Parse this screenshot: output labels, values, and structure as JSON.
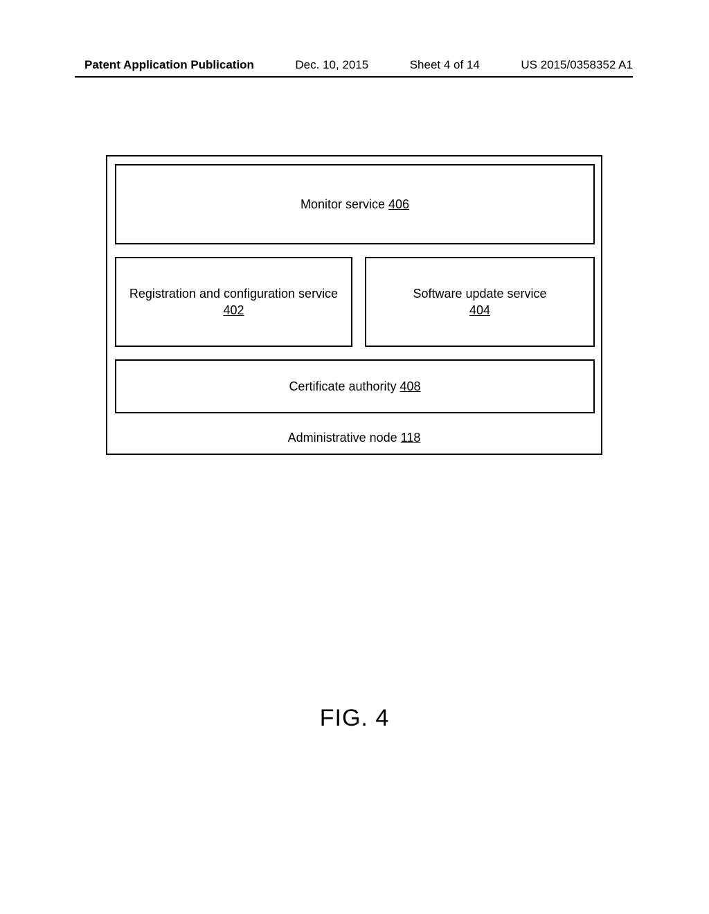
{
  "header": {
    "pub": "Patent Application Publication",
    "date": "Dec. 10, 2015",
    "sheet": "Sheet 4 of 14",
    "docnum": "US 2015/0358352 A1"
  },
  "diagram": {
    "outer": {
      "border_color": "#000000",
      "border_width": 2,
      "background": "#ffffff"
    },
    "boxes": {
      "monitor": {
        "label": "Monitor service ",
        "number": "406"
      },
      "reg": {
        "label": "Registration and configuration service",
        "number": "402"
      },
      "upd": {
        "label": "Software update service",
        "number": "404"
      },
      "cert": {
        "label": "Certificate authority ",
        "number": "408"
      },
      "admin": {
        "label": "Administrative node ",
        "number": "118"
      }
    },
    "text_color": "#000000",
    "font_size_box": 18,
    "font_size_caption": 34
  },
  "caption": "FIG. 4"
}
